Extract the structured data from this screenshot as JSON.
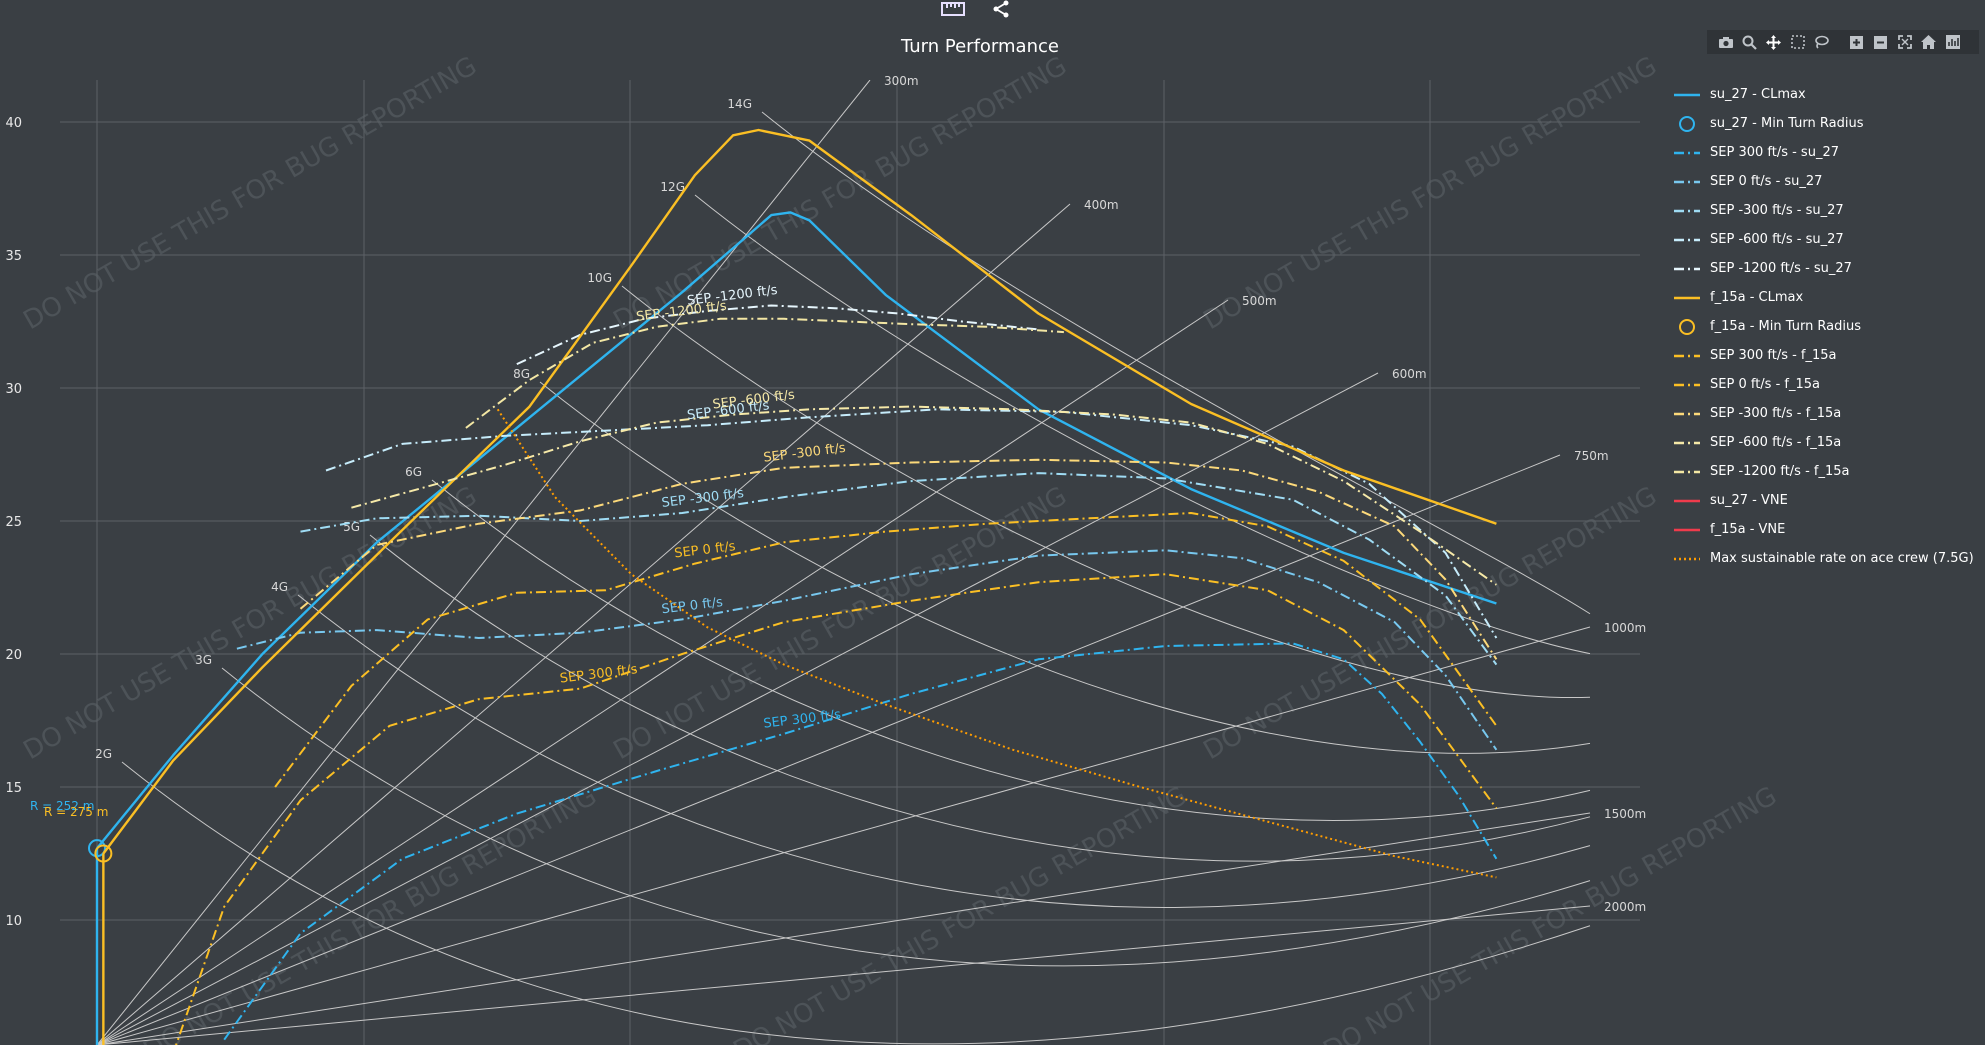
{
  "toolbar": {
    "top_icons": [
      "ruler-icon",
      "share-icon"
    ],
    "modebar_icons": [
      "camera-icon",
      "zoom-icon",
      "pan-icon",
      "box-select-icon",
      "lasso-icon",
      "zoom-in-icon",
      "zoom-out-icon",
      "autoscale-icon",
      "reset-axes-icon",
      "plotly-logo-icon"
    ]
  },
  "watermark": "DO NOT USE THIS FOR BUG REPORTING",
  "colors": {
    "su27": "#2fb4ef",
    "f15a": "#fbbf24",
    "su27_light": "#9fe1ff",
    "f15a_light": "#f3e7a4",
    "vne": "#ef3b4c",
    "grid": "#5c6166",
    "bg": "#3a3f44"
  },
  "chart_data": {
    "type": "line",
    "title": "Turn Performance",
    "xlabel": "",
    "ylabel": "",
    "xlim": [
      0,
      1150
    ],
    "ylim": [
      5.5,
      42
    ],
    "x_ticks": [],
    "y_ticks": [
      10,
      15,
      20,
      25,
      30,
      35,
      40
    ],
    "grid": true,
    "legend_position": "right",
    "series": [
      {
        "name": "su_27 - CLmax",
        "color": "#2fb4ef",
        "style": "solid",
        "x": [
          0,
          60,
          130,
          220,
          330,
          460,
          530,
          545,
          560,
          620,
          740,
          860,
          980,
          1100
        ],
        "y": [
          12.7,
          16.2,
          20.0,
          24.2,
          28.5,
          33.6,
          36.5,
          36.6,
          36.3,
          33.5,
          29.2,
          26.2,
          23.8,
          21.9
        ]
      },
      {
        "name": "su_27 - Min Turn Radius",
        "color": "#2fb4ef",
        "marker": "circle",
        "x": [
          0
        ],
        "y": [
          12.7
        ],
        "label": "R = 252 m"
      },
      {
        "name": "SEP 300 ft/s - su_27",
        "color": "#2fb4ef",
        "style": "dashdot",
        "label": "SEP 300 ft/s",
        "x": [
          100,
          160,
          240,
          330,
          440,
          540,
          640,
          740,
          840,
          940,
          980,
          1010,
          1040,
          1070,
          1100
        ],
        "y": [
          5.5,
          9.5,
          12.3,
          14.0,
          15.6,
          17.0,
          18.5,
          19.8,
          20.3,
          20.4,
          19.8,
          18.5,
          16.7,
          14.7,
          12.3
        ]
      },
      {
        "name": "SEP 0 ft/s - su_27",
        "color": "#78c8ef",
        "style": "dashdot",
        "label": "SEP 0 ft/s",
        "x": [
          110,
          160,
          220,
          300,
          380,
          460,
          540,
          640,
          740,
          840,
          900,
          960,
          1020,
          1060,
          1100
        ],
        "y": [
          20.2,
          20.8,
          20.9,
          20.6,
          20.8,
          21.3,
          22.0,
          23.0,
          23.7,
          23.9,
          23.6,
          22.7,
          21.2,
          19.2,
          16.4
        ]
      },
      {
        "name": "SEP -300 ft/s - su_27",
        "color": "#9fdcf4",
        "style": "dashdot",
        "label": "SEP -300 ft/s",
        "x": [
          160,
          220,
          300,
          380,
          460,
          540,
          640,
          740,
          840,
          940,
          1000,
          1060,
          1100
        ],
        "y": [
          24.6,
          25.1,
          25.2,
          25.0,
          25.3,
          25.9,
          26.5,
          26.8,
          26.6,
          25.8,
          24.3,
          22.2,
          19.6
        ]
      },
      {
        "name": "SEP -600 ft/s - su_27",
        "color": "#c6ecfb",
        "style": "dashdot",
        "label": "SEP -600 ft/s",
        "x": [
          180,
          240,
          320,
          400,
          480,
          560,
          660,
          760,
          860,
          940,
          1000,
          1060,
          1100
        ],
        "y": [
          26.9,
          27.9,
          28.2,
          28.4,
          28.6,
          28.9,
          29.2,
          29.1,
          28.6,
          27.8,
          26.4,
          23.8,
          20.6
        ]
      },
      {
        "name": "SEP -1200 ft/s - su_27",
        "color": "#e6f6fd",
        "style": "dashdot",
        "label": "SEP -1200 ft/s",
        "x": [
          330,
          380,
          430,
          480,
          530,
          580,
          630,
          680,
          740
        ],
        "y": [
          30.9,
          32.0,
          32.6,
          32.9,
          33.1,
          33.0,
          32.8,
          32.5,
          32.2
        ]
      },
      {
        "name": "f_15a - CLmax",
        "color": "#fbbf24",
        "style": "solid",
        "x": [
          5,
          60,
          130,
          230,
          340,
          420,
          470,
          500,
          520,
          560,
          640,
          740,
          860,
          980,
          1100
        ],
        "y": [
          12.5,
          16.0,
          19.5,
          24.2,
          29.3,
          34.6,
          38.0,
          39.5,
          39.7,
          39.3,
          36.5,
          32.8,
          29.4,
          26.9,
          24.9
        ]
      },
      {
        "name": "f_15a - Min Turn Radius",
        "color": "#fbbf24",
        "marker": "circle",
        "x": [
          5
        ],
        "y": [
          12.5
        ],
        "label": "R = 275 m"
      },
      {
        "name": "SEP 300 ft/s - f_15a",
        "color": "#fbbf24",
        "style": "dashdot",
        "label": "SEP 300 ft/s",
        "x": [
          60,
          100,
          160,
          230,
          300,
          380,
          460,
          540,
          640,
          740,
          840,
          920,
          980,
          1040,
          1100
        ],
        "y": [
          5.0,
          10.5,
          14.5,
          17.3,
          18.3,
          18.7,
          20.0,
          21.2,
          22.0,
          22.7,
          23.0,
          22.4,
          20.9,
          18.1,
          14.2
        ]
      },
      {
        "name": "SEP 0 ft/s - f_15a",
        "color": "#fbbf24",
        "style": "dashdot",
        "label": "SEP 0 ft/s",
        "x": [
          140,
          200,
          260,
          330,
          400,
          470,
          540,
          620,
          700,
          780,
          860,
          920,
          980,
          1040,
          1100
        ],
        "y": [
          15.0,
          18.8,
          21.3,
          22.3,
          22.4,
          23.4,
          24.2,
          24.6,
          24.9,
          25.1,
          25.3,
          24.8,
          23.5,
          21.3,
          17.3
        ]
      },
      {
        "name": "SEP -300 ft/s - f_15a",
        "color": "#fcd97a",
        "style": "dashdot",
        "label": "SEP -300 ft/s",
        "x": [
          160,
          220,
          300,
          380,
          460,
          540,
          640,
          740,
          840,
          900,
          960,
          1020,
          1060,
          1100
        ],
        "y": [
          21.7,
          24.1,
          24.9,
          25.4,
          26.4,
          27.0,
          27.2,
          27.3,
          27.2,
          26.9,
          26.1,
          24.8,
          22.8,
          19.8
        ]
      },
      {
        "name": "SEP -600 ft/s - f_15a",
        "color": "#f6e9a8",
        "style": "dashdot",
        "label": "SEP -600 ft/s",
        "x": [
          200,
          260,
          320,
          380,
          440,
          500,
          560,
          640,
          720,
          800,
          860,
          920,
          980,
          1040,
          1100
        ],
        "y": [
          25.5,
          26.3,
          27.1,
          28.0,
          28.7,
          29.0,
          29.2,
          29.3,
          29.2,
          29.0,
          28.7,
          27.9,
          26.5,
          24.6,
          22.6
        ]
      },
      {
        "name": "SEP -1200 ft/s - f_15a",
        "color": "#f3e7a4",
        "style": "dashdot",
        "label": "SEP -1200 ft/s",
        "x": [
          290,
          340,
          390,
          440,
          490,
          540,
          590,
          640,
          700,
          760
        ],
        "y": [
          28.5,
          30.3,
          31.7,
          32.3,
          32.6,
          32.6,
          32.5,
          32.4,
          32.3,
          32.1
        ]
      },
      {
        "name": "su_27 - VNE",
        "color": "#ef3b4c",
        "style": "solid",
        "x": [],
        "y": []
      },
      {
        "name": "f_15a - VNE",
        "color": "#ef3b4c",
        "style": "solid",
        "x": [],
        "y": []
      },
      {
        "name": "Max sustainable rate on ace crew (7.5G)",
        "color": "#ff9d00",
        "style": "dot",
        "x": [
          315,
          360,
          420,
          480,
          540,
          620,
          720,
          820,
          920,
          1020,
          1100
        ],
        "y": [
          29.2,
          25.9,
          23.0,
          21.0,
          19.6,
          18.1,
          16.4,
          15.0,
          13.7,
          12.4,
          11.6
        ]
      }
    ],
    "g_lines": [
      {
        "label": "2G",
        "g": 2
      },
      {
        "label": "3G",
        "g": 3
      },
      {
        "label": "4G",
        "g": 4
      },
      {
        "label": "5G",
        "g": 5
      },
      {
        "label": "6G",
        "g": 6
      },
      {
        "label": "8G",
        "g": 8
      },
      {
        "label": "10G",
        "g": 10
      },
      {
        "label": "12G",
        "g": 12
      },
      {
        "label": "14G",
        "g": 14
      }
    ],
    "radius_lines": [
      {
        "label": "300m",
        "r": 300
      },
      {
        "label": "400m",
        "r": 400
      },
      {
        "label": "500m",
        "r": 500
      },
      {
        "label": "600m",
        "r": 600
      },
      {
        "label": "750m",
        "r": 750
      },
      {
        "label": "1000m",
        "r": 1000
      },
      {
        "label": "1500m",
        "r": 1500
      },
      {
        "label": "2000m",
        "r": 2000
      }
    ],
    "annotations": [
      {
        "text": "R = 252 m",
        "color": "#2fb4ef"
      },
      {
        "text": "R = 275 m",
        "color": "#fbbf24"
      }
    ]
  }
}
